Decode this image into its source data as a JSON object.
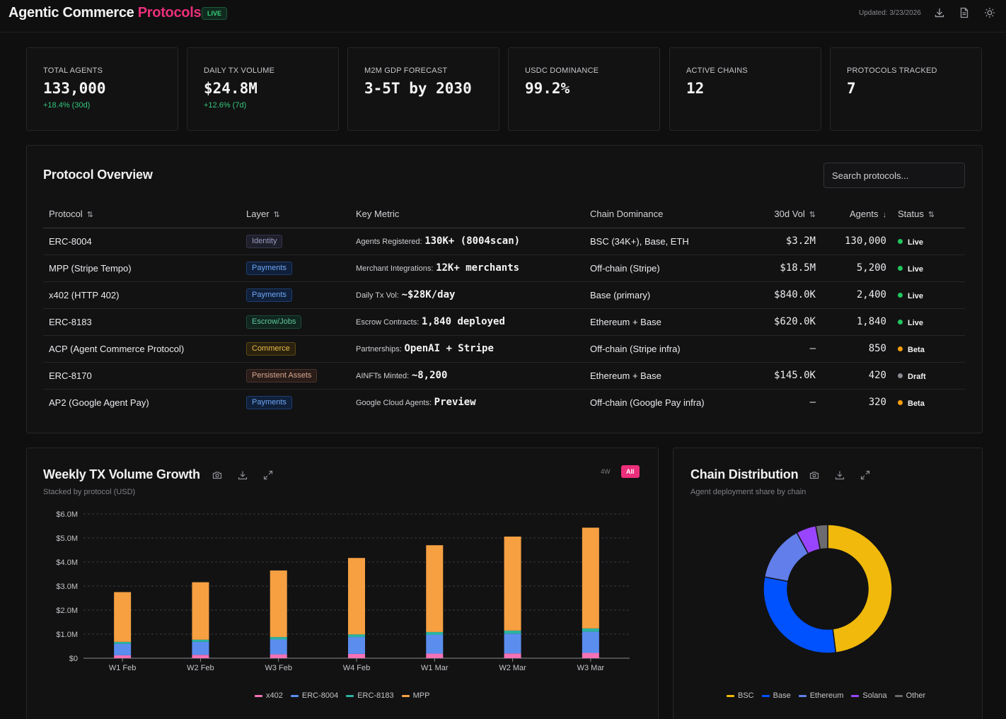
{
  "header": {
    "title_main": "Agentic Commerce",
    "title_accent": "Protocols",
    "live_badge": "LIVE",
    "updated": "Updated: 3/23/2026"
  },
  "cards": [
    {
      "label": "TOTAL AGENTS",
      "value": "133,000",
      "delta": "+18.4% (30d)"
    },
    {
      "label": "DAILY TX VOLUME",
      "value": "$24.8M",
      "delta": "+12.6% (7d)"
    },
    {
      "label": "M2M GDP FORECAST",
      "value": "3-5T by 2030",
      "delta": ""
    },
    {
      "label": "USDC DOMINANCE",
      "value": "99.2%",
      "delta": ""
    },
    {
      "label": "ACTIVE CHAINS",
      "value": "12",
      "delta": ""
    },
    {
      "label": "PROTOCOLS TRACKED",
      "value": "7",
      "delta": ""
    }
  ],
  "overview": {
    "title": "Protocol Overview",
    "search_placeholder": "Search protocols...",
    "columns": [
      "Protocol",
      "Layer",
      "Key Metric",
      "Chain Dominance",
      "30d Vol",
      "Agents",
      "Status"
    ],
    "rows": [
      {
        "protocol": "ERC-8004",
        "layer": "Identity",
        "metric_label": "Agents Registered:",
        "metric_value": "130K+ (8004scan)",
        "chain": "BSC (34K+), Base, ETH",
        "vol": "$3.2M",
        "agents": "130,000",
        "status": "Live"
      },
      {
        "protocol": "MPP (Stripe Tempo)",
        "layer": "Payments",
        "metric_label": "Merchant Integrations:",
        "metric_value": "12K+ merchants",
        "chain": "Off-chain (Stripe)",
        "vol": "$18.5M",
        "agents": "5,200",
        "status": "Live"
      },
      {
        "protocol": "x402 (HTTP 402)",
        "layer": "Payments",
        "metric_label": "Daily Tx Vol:",
        "metric_value": "~$28K/day",
        "chain": "Base (primary)",
        "vol": "$840.0K",
        "agents": "2,400",
        "status": "Live"
      },
      {
        "protocol": "ERC-8183",
        "layer": "Escrow/Jobs",
        "metric_label": "Escrow Contracts:",
        "metric_value": "1,840 deployed",
        "chain": "Ethereum + Base",
        "vol": "$620.0K",
        "agents": "1,840",
        "status": "Live"
      },
      {
        "protocol": "ACP (Agent Commerce Protocol)",
        "layer": "Commerce",
        "metric_label": "Partnerships:",
        "metric_value": "OpenAI + Stripe",
        "chain": "Off-chain (Stripe infra)",
        "vol": "–",
        "agents": "850",
        "status": "Beta"
      },
      {
        "protocol": "ERC-8170",
        "layer": "Persistent Assets",
        "metric_label": "AINFTs Minted:",
        "metric_value": "~8,200",
        "chain": "Ethereum + Base",
        "vol": "$145.0K",
        "agents": "420",
        "status": "Draft"
      },
      {
        "protocol": "AP2 (Google Agent Pay)",
        "layer": "Payments",
        "metric_label": "Google Cloud Agents:",
        "metric_value": "Preview",
        "chain": "Off-chain (Google Pay infra)",
        "vol": "–",
        "agents": "320",
        "status": "Beta"
      }
    ]
  },
  "colors": {
    "accent": "#ec2f7b",
    "live": "#22c55e",
    "beta": "#f59e0b",
    "draft": "#8a8a8f",
    "layer": {
      "Identity": {
        "bg": "#1f1f2b",
        "border": "#34344a",
        "fg": "#9a9ac0"
      },
      "Payments": {
        "bg": "#10203a",
        "border": "#1e3d6e",
        "fg": "#6fa6f5"
      },
      "Escrow/Jobs": {
        "bg": "#10261e",
        "border": "#1d4a38",
        "fg": "#5fc9a0"
      },
      "Commerce": {
        "bg": "#2a220e",
        "border": "#5a4a14",
        "fg": "#e8b94a"
      },
      "Persistent Assets": {
        "bg": "#2a1c18",
        "border": "#4a342c",
        "fg": "#d6a890"
      }
    }
  },
  "weekly": {
    "title": "Weekly TX Volume Growth",
    "subtitle": "Stacked by protocol (USD)",
    "range_options": [
      "4W",
      "All"
    ],
    "range_selected": "All"
  },
  "chain_dist": {
    "title": "Chain Distribution",
    "subtitle": "Agent deployment share by chain"
  },
  "chart_data": [
    {
      "type": "bar",
      "stacked": true,
      "categories": [
        "W1 Feb",
        "W2 Feb",
        "W3 Feb",
        "W4 Feb",
        "W1 Mar",
        "W2 Mar",
        "W3 Mar"
      ],
      "ylim": [
        0,
        6000000
      ],
      "yticks": [
        "$0",
        "$1.0M",
        "$2.0M",
        "$3.0M",
        "$4.0M",
        "$5.0M",
        "$6.0M"
      ],
      "grid": true,
      "legend": "bottom",
      "series": [
        {
          "name": "x402",
          "color": "#f472b6",
          "values": [
            120000,
            140000,
            160000,
            180000,
            190000,
            200000,
            220000
          ]
        },
        {
          "name": "ERC-8004",
          "color": "#5b8def",
          "values": [
            480000,
            540000,
            620000,
            700000,
            780000,
            820000,
            880000
          ]
        },
        {
          "name": "ERC-8183",
          "color": "#2bb3a0",
          "values": [
            80000,
            90000,
            100000,
            110000,
            120000,
            130000,
            140000
          ]
        },
        {
          "name": "MPP",
          "color": "#f6a042",
          "values": [
            2070000,
            2390000,
            2770000,
            3180000,
            3610000,
            3910000,
            4190000
          ]
        }
      ]
    },
    {
      "type": "pie",
      "donut": true,
      "legend": "bottom",
      "labels": [
        "BSC",
        "Base",
        "Ethereum",
        "Solana",
        "Other"
      ],
      "values": [
        48,
        30,
        14,
        5,
        3
      ],
      "colors": [
        "#f0b90b",
        "#0052ff",
        "#627eea",
        "#9945ff",
        "#6b6b70"
      ]
    }
  ]
}
